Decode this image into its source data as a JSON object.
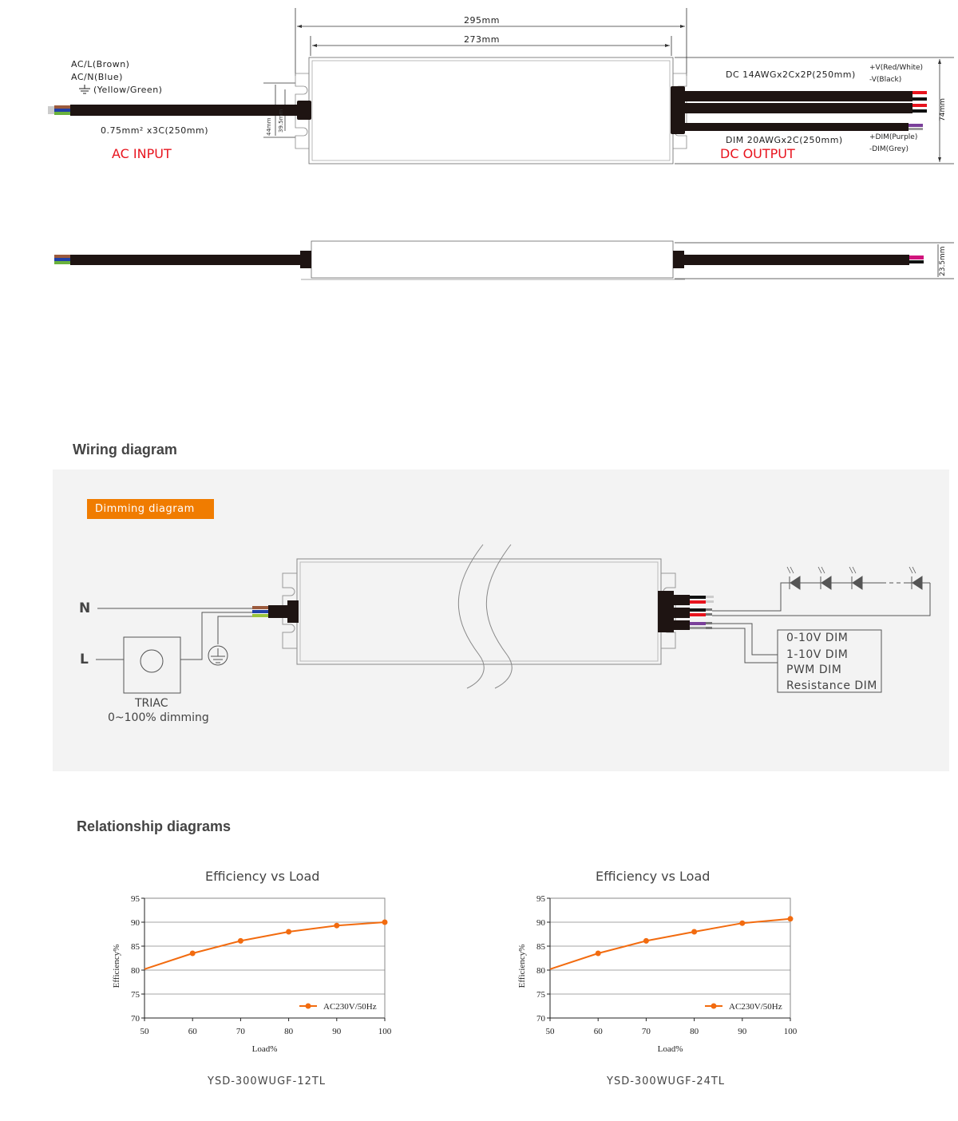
{
  "dimensions": {
    "overall_length": "295mm",
    "body_length": "273mm",
    "width": "74mm",
    "height": "23.5mm",
    "flange_outer": "44mm",
    "flange_inner": "39.5mm"
  },
  "ac_input": {
    "wire_l": "AC/L(Brown)",
    "wire_n": "AC/N(Blue)",
    "wire_pe": "(Yellow/Green)",
    "cable_spec": "0.75mm² x3C(250mm)",
    "title": "AC INPUT"
  },
  "dc_output": {
    "dc_cable_spec": "DC  14AWGx2Cx2P(250mm)",
    "vplus": "+V(Red/White)",
    "vminus": "-V(Black)",
    "dim_cable_spec": "DIM  20AWGx2C(250mm)",
    "dimplus": "+DIM(Purple)",
    "dimminus": "-DIM(Grey)",
    "title": "DC OUTPUT"
  },
  "wiring": {
    "heading": "Wiring diagram",
    "badge": "Dimming diagram",
    "n_label": "N",
    "l_label": "L",
    "triac_label": "TRIAC",
    "triac_range": "0~100% dimming",
    "dim_modes": [
      "0-10V DIM",
      "1-10V DIM",
      "PWM DIM",
      "Resistance DIM"
    ]
  },
  "relationship": {
    "heading": "Relationship diagrams"
  },
  "colors": {
    "accent": "#f07c00",
    "series": "#f26b0f",
    "warning_red": "#e8141e"
  },
  "chart_data": [
    {
      "type": "line",
      "title": "Efficiency vs Load",
      "xlabel": "Load%",
      "ylabel": "Efficiency%",
      "xlim": [
        50,
        100
      ],
      "ylim": [
        70,
        95
      ],
      "xticks": [
        50,
        60,
        70,
        80,
        90,
        100
      ],
      "yticks": [
        70,
        75,
        80,
        85,
        90,
        95
      ],
      "grid": true,
      "legend": "bottom-right",
      "series": [
        {
          "name": "AC230V/50Hz",
          "x": [
            50,
            60,
            70,
            80,
            90,
            100
          ],
          "values": [
            80.2,
            83.5,
            86.1,
            88.0,
            89.3,
            90.0
          ]
        }
      ],
      "caption": "YSD-300WUGF-12TL"
    },
    {
      "type": "line",
      "title": "Efficiency vs Load",
      "xlabel": "Load%",
      "ylabel": "Efficiency%",
      "xlim": [
        50,
        100
      ],
      "ylim": [
        70,
        95
      ],
      "xticks": [
        50,
        60,
        70,
        80,
        90,
        100
      ],
      "yticks": [
        70,
        75,
        80,
        85,
        90,
        95
      ],
      "grid": true,
      "legend": "bottom-right",
      "series": [
        {
          "name": "AC230V/50Hz",
          "x": [
            50,
            60,
            70,
            80,
            90,
            100
          ],
          "values": [
            80.2,
            83.5,
            86.1,
            88.0,
            89.8,
            90.7
          ]
        }
      ],
      "caption": "YSD-300WUGF-24TL"
    }
  ]
}
